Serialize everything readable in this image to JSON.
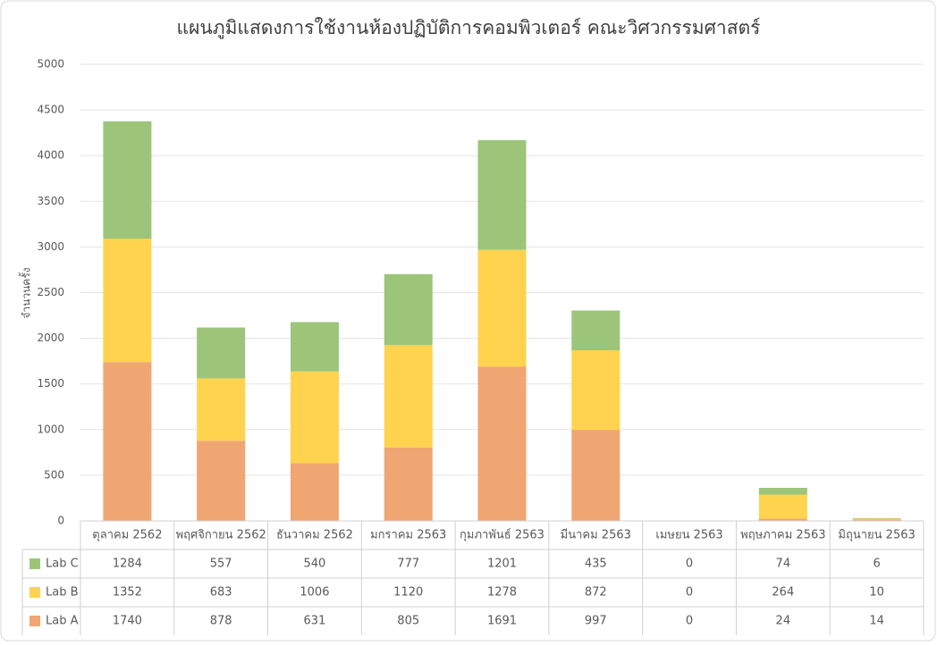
{
  "chart_data": {
    "type": "stacked_bar",
    "title": "แผนภูมิแสดงการใช้งานห้องปฏิบัติการคอมพิวเตอร์ คณะวิศวกรรมศาสตร์",
    "y_label": "จำนวนครั้ง",
    "categories": [
      "ตุลาคม 2562",
      "พฤศจิกายน 2562",
      "ธันวาคม 2562",
      "มกราคม 2563",
      "กุมภาพันธ์ 2563",
      "มีนาคม 2563",
      "เมษยน 2563",
      "พฤษภาคม 2563",
      "มิถุนายน 2563"
    ],
    "series": [
      {
        "name": "Lab A",
        "color": "#f0a673",
        "values": [
          1740,
          878,
          631,
          805,
          1691,
          997,
          0,
          24,
          14
        ]
      },
      {
        "name": "Lab B",
        "color": "#ffd34e",
        "values": [
          1352,
          683,
          1006,
          1120,
          1278,
          872,
          0,
          264,
          10
        ]
      },
      {
        "name": "Lab C",
        "color": "#9cc57a",
        "values": [
          1284,
          557,
          540,
          777,
          1201,
          435,
          0,
          74,
          6
        ]
      }
    ],
    "ylim": [
      0,
      5000
    ],
    "yticks": [
      0,
      500,
      1000,
      1500,
      2000,
      2500,
      3000,
      3500,
      4000,
      4500,
      5000
    ],
    "grid": true
  }
}
